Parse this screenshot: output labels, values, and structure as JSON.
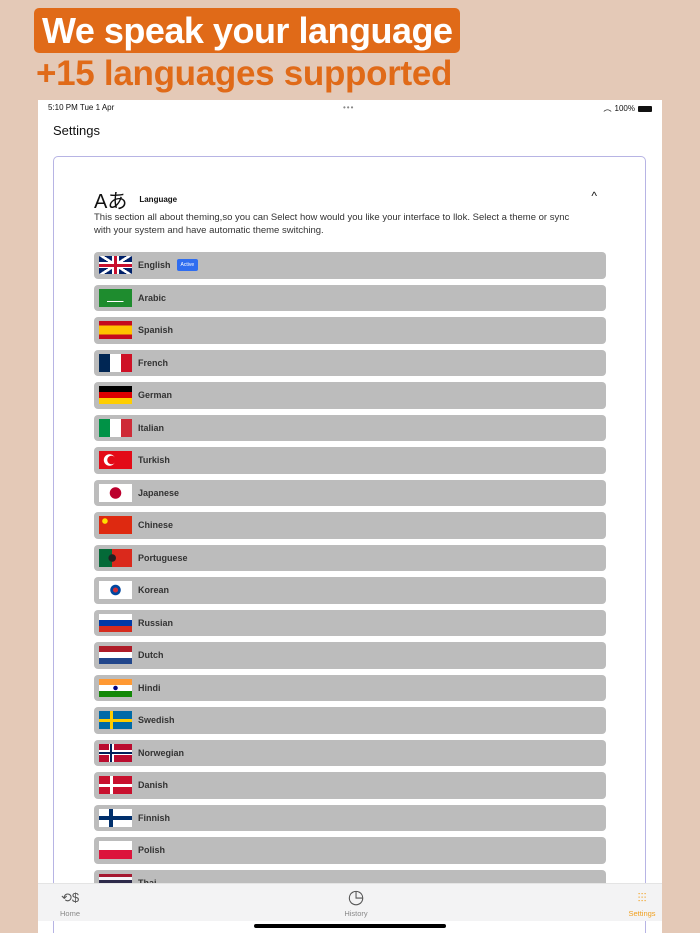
{
  "promo": {
    "headline": "We speak your language",
    "subheadline": "+15 languages supported",
    "accent": "#e06a18"
  },
  "status_bar": {
    "time": "5:10 PM  Tue 1 Apr",
    "dots": "•••",
    "battery": "100%"
  },
  "page_title": "Settings",
  "section": {
    "icon": "Aあ",
    "title": "Language",
    "description": "This section all about theming,so you can Select how would you like your interface to llok. Select a theme or sync with your system and have automatic theme switching.",
    "expanded": true
  },
  "languages": [
    {
      "label": "English",
      "flag": "gb",
      "badge": "Active"
    },
    {
      "label": "Arabic",
      "flag": "sa"
    },
    {
      "label": "Spanish",
      "flag": "es"
    },
    {
      "label": "French",
      "flag": "fr"
    },
    {
      "label": "German",
      "flag": "de"
    },
    {
      "label": "Italian",
      "flag": "it"
    },
    {
      "label": "Turkish",
      "flag": "tr"
    },
    {
      "label": "Japanese",
      "flag": "jp"
    },
    {
      "label": "Chinese",
      "flag": "cn"
    },
    {
      "label": "Portuguese",
      "flag": "pt"
    },
    {
      "label": "Korean",
      "flag": "kr"
    },
    {
      "label": "Russian",
      "flag": "ru"
    },
    {
      "label": "Dutch",
      "flag": "nl"
    },
    {
      "label": "Hindi",
      "flag": "in"
    },
    {
      "label": "Swedish",
      "flag": "se"
    },
    {
      "label": "Norwegian",
      "flag": "no"
    },
    {
      "label": "Danish",
      "flag": "dk"
    },
    {
      "label": "Finnish",
      "flag": "fi"
    },
    {
      "label": "Polish",
      "flag": "pl"
    },
    {
      "label": "Thai",
      "flag": "th"
    }
  ],
  "tabs": [
    {
      "label": "Home",
      "icon": "dollar-refresh-icon"
    },
    {
      "label": "History",
      "icon": "history-clock-icon"
    },
    {
      "label": "Settings",
      "icon": "sliders-icon",
      "active": true
    }
  ],
  "colors": {
    "active_tab": "#f0a020",
    "badge": "#2f6df0",
    "row_bg": "#bcbcbc"
  }
}
